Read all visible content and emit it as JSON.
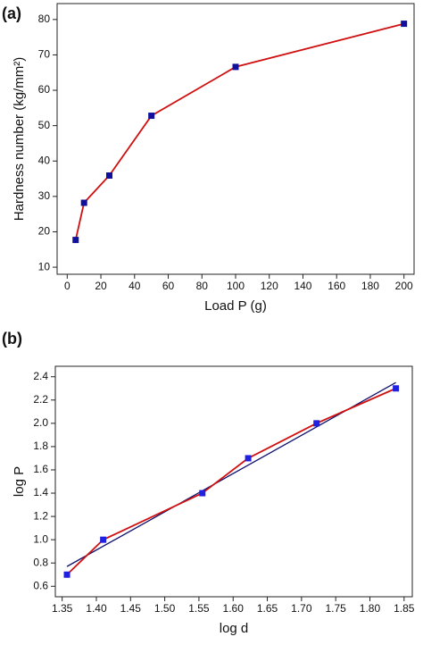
{
  "chart_data": [
    {
      "type": "line",
      "label": "(a)",
      "xlabel": "Load P (g)",
      "ylabel": "Hardness number (kg/mm²)",
      "xlim": [
        -6,
        206
      ],
      "ylim": [
        8,
        84.5
      ],
      "xticks": [
        0,
        20,
        40,
        60,
        80,
        100,
        120,
        140,
        160,
        180,
        200
      ],
      "yticks": [
        10,
        20,
        30,
        40,
        50,
        60,
        70,
        80
      ],
      "series": [
        {
          "color": "#d01010",
          "marker_color": "#10109a",
          "x": [
            5,
            10,
            25,
            50,
            100,
            200
          ],
          "values": [
            17.7,
            28.2,
            35.9,
            52.8,
            66.6,
            78.8
          ]
        }
      ]
    },
    {
      "type": "line",
      "label": "(b)",
      "xlabel": "log d",
      "ylabel": "log P",
      "xlim": [
        1.34,
        1.862
      ],
      "ylim": [
        0.51,
        2.49
      ],
      "xticks": [
        1.35,
        {
          "value": 1.4,
          "label": "1.40"
        },
        1.45,
        {
          "value": 1.5,
          "label": "1.50"
        },
        1.55,
        {
          "value": 1.6,
          "label": "1.60"
        },
        1.65,
        {
          "value": 1.7,
          "label": "1.70"
        },
        1.75,
        {
          "value": 1.8,
          "label": "1.80"
        },
        1.85
      ],
      "yticks": [
        0.6,
        0.8,
        {
          "value": 1,
          "label": "1.0"
        },
        1.2,
        1.4,
        1.6,
        1.8,
        {
          "value": 2,
          "label": "2.0"
        },
        2.2,
        2.4
      ],
      "series": [
        {
          "color": "#10106e",
          "x": [
            1.357,
            1.838
          ],
          "values": [
            0.77,
            2.35
          ]
        },
        {
          "color": "#d01010",
          "marker_color": "#2020e0",
          "x": [
            1.357,
            1.41,
            1.555,
            1.622,
            1.722,
            1.838
          ],
          "values": [
            0.7,
            1,
            1.4,
            1.7,
            2,
            2.3
          ]
        }
      ]
    }
  ]
}
